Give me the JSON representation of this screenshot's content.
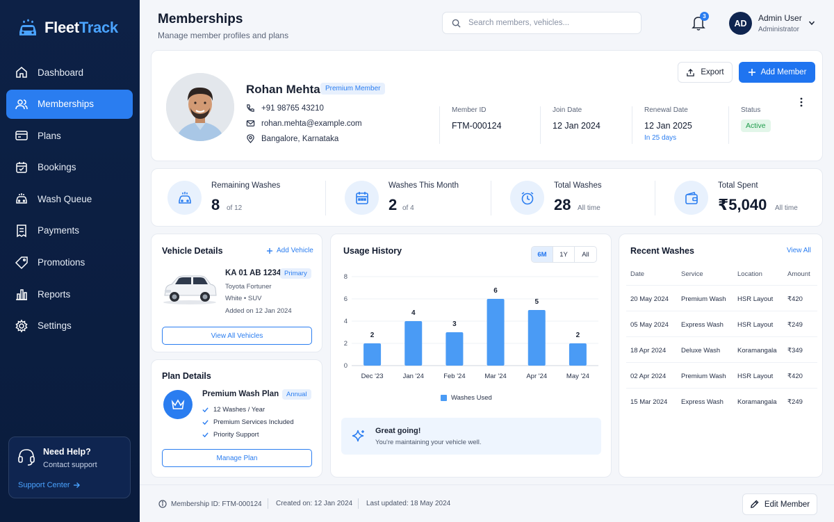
{
  "app": {
    "name_part1": "Fleet",
    "name_part2": "Track",
    "accent_color": "#2a7df0",
    "sidebar_color": "#0d2146"
  },
  "sidebar": {
    "items": [
      {
        "label": "Dashboard",
        "icon": "home-icon"
      },
      {
        "label": "Memberships",
        "icon": "users-icon",
        "active": true
      },
      {
        "label": "Plans",
        "icon": "card-icon"
      },
      {
        "label": "Bookings",
        "icon": "calendar-icon"
      },
      {
        "label": "Wash Queue",
        "icon": "car-icon"
      },
      {
        "label": "Payments",
        "icon": "receipt-icon"
      },
      {
        "label": "Promotions",
        "icon": "tag-icon"
      },
      {
        "label": "Reports",
        "icon": "bar-chart-icon"
      },
      {
        "label": "Settings",
        "icon": "gear-icon"
      }
    ],
    "help": {
      "title": "Need Help?",
      "subtitle": "Contact support",
      "link": "Support Center"
    }
  },
  "header": {
    "title": "Memberships",
    "subtitle": "Manage member profiles and plans",
    "search_placeholder": "Search members, vehicles...",
    "notification_count": "3",
    "user": {
      "initials": "AD",
      "name": "Admin User",
      "role": "Administrator"
    }
  },
  "profile": {
    "name": "Rohan Mehta",
    "tag": "Premium Member",
    "phone": "+91 98765 43210",
    "email": "rohan.mehta@example.com",
    "location": "Bangalore, Karnataka",
    "member_id_label": "Member ID",
    "member_id": "FTM-000124",
    "join_label": "Join Date",
    "join_date": "12 Jan 2024",
    "renewal_label": "Renewal Date",
    "renewal_date": "12 Jan 2025",
    "renewal_in": "In 25 days",
    "status_label": "Status",
    "status": "Active",
    "export_label": "Export",
    "add_label": "Add Member"
  },
  "stats": [
    {
      "label": "Remaining Washes",
      "value": "8",
      "sub": "of 12",
      "icon": "car-icon"
    },
    {
      "label": "Washes This Month",
      "value": "2",
      "sub": "of 4",
      "icon": "calendar-icon"
    },
    {
      "label": "Total Washes",
      "value": "28",
      "sub": "All time",
      "icon": "clock-icon"
    },
    {
      "label": "Total Spent",
      "value": "₹5,040",
      "sub": "All time",
      "icon": "wallet-icon"
    }
  ],
  "vehicle": {
    "title": "Vehicle Details",
    "add_label": "Add Vehicle",
    "plate": "KA 01 AB 1234",
    "primary_tag": "Primary",
    "model": "Toyota Fortuner",
    "spec": "White • SUV",
    "added": "Added on 12 Jan 2024",
    "view_all_label": "View All Vehicles"
  },
  "plan": {
    "title": "Plan Details",
    "name": "Premium Wash Plan",
    "billing": "Annual",
    "features": [
      "12 Washes / Year",
      "Premium Services Included",
      "Priority Support"
    ],
    "manage_label": "Manage Plan"
  },
  "usage": {
    "title": "Usage History",
    "ranges": [
      {
        "label": "6M",
        "active": true
      },
      {
        "label": "1Y",
        "active": false
      },
      {
        "label": "All",
        "active": false
      }
    ],
    "insight_title": "Great going!",
    "insight_sub": "You're maintaining your vehicle well."
  },
  "chart_data": {
    "type": "bar",
    "categories": [
      "Dec '23",
      "Jan '24",
      "Feb '24",
      "Mar '24",
      "Apr '24",
      "May '24"
    ],
    "series": [
      {
        "name": "Washes Used",
        "values": [
          2,
          4,
          3,
          6,
          5,
          2
        ],
        "color": "#4a9bf5"
      }
    ],
    "ylim": [
      0,
      8
    ],
    "yticks": [
      0,
      2,
      4,
      6,
      8
    ],
    "grid": true,
    "legend": "bottom",
    "data_labels": true
  },
  "recent": {
    "title": "Recent Washes",
    "view_all": "View All",
    "columns": [
      "Date",
      "Service",
      "Location",
      "Amount"
    ],
    "rows": [
      [
        "20 May 2024",
        "Premium Wash",
        "HSR Layout",
        "₹420"
      ],
      [
        "05 May 2024",
        "Express Wash",
        "HSR Layout",
        "₹249"
      ],
      [
        "18 Apr 2024",
        "Deluxe Wash",
        "Koramangala",
        "₹349"
      ],
      [
        "02 Apr 2024",
        "Premium Wash",
        "HSR Layout",
        "₹420"
      ],
      [
        "15 Mar 2024",
        "Express Wash",
        "Koramangala",
        "₹249"
      ]
    ]
  },
  "footer": {
    "membership_id": "Membership ID: FTM-000124",
    "created": "Created on: 12 Jan 2024",
    "updated": "Last updated: 18 May 2024",
    "edit_label": "Edit Member"
  }
}
